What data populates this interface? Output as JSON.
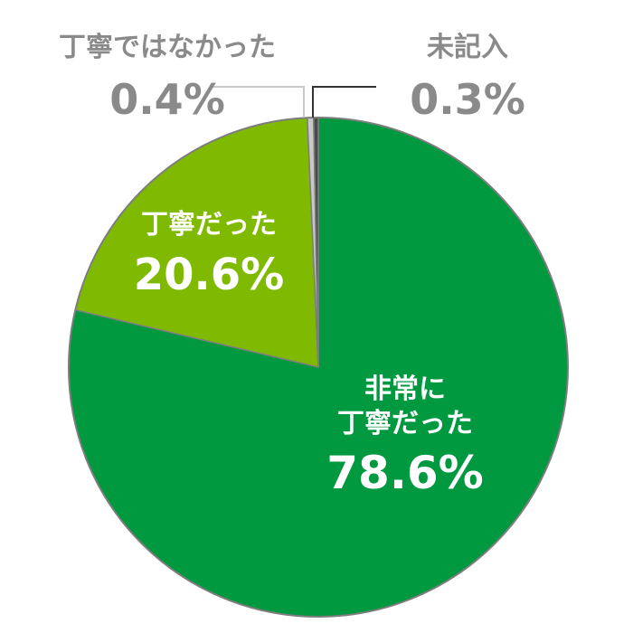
{
  "chart_data": {
    "type": "pie",
    "slices": [
      {
        "label": "非常に丁寧だった",
        "label_lines": [
          "非常に",
          "丁寧だった"
        ],
        "value": 78.6,
        "value_text": "78.6%",
        "color": "#00993f"
      },
      {
        "label": "丁寧だった",
        "label_lines": [
          "丁寧だった"
        ],
        "value": 20.6,
        "value_text": "20.6%",
        "color": "#7fba00"
      },
      {
        "label": "丁寧ではなかった",
        "label_lines": [
          "丁寧ではなかった"
        ],
        "value": 0.4,
        "value_text": "0.4%",
        "color": "#c8c8c8"
      },
      {
        "label": "未記入",
        "label_lines": [
          "未記入"
        ],
        "value": 0.3,
        "value_text": "0.3%",
        "color": "#4a4a4a"
      }
    ],
    "start_angle": "top",
    "direction": "clockwise"
  },
  "colors": {
    "inside_label": "#ffffff",
    "outside_label": "#8a8a8a",
    "slice_border": "#7d7d7d"
  }
}
